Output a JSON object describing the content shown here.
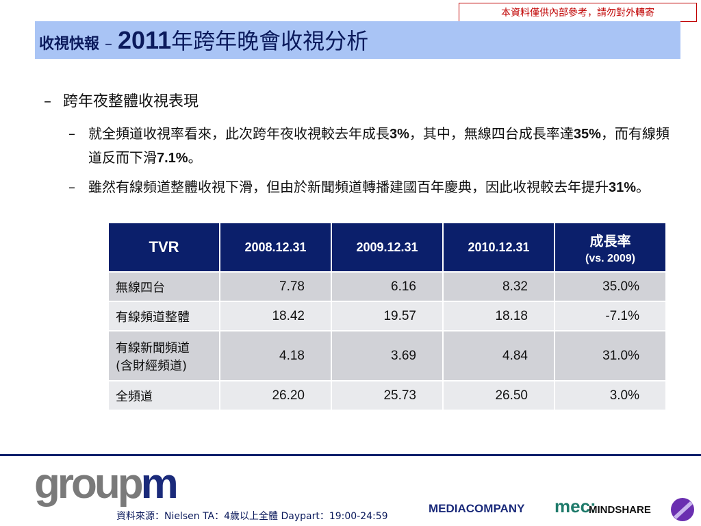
{
  "notice": "本資料僅供內部參考，請勿對外轉寄",
  "title": {
    "prefix": "收視快報",
    "separator": "–",
    "year": "2011",
    "rest": "年跨年晚會收視分析"
  },
  "bullets": {
    "level1": "跨年夜整體收視表現",
    "item1": {
      "p1": "就全頻道收視率看來，此次跨年夜收視較去年成長",
      "n1": "3%",
      "p2": "，其中，無線四台成長率達",
      "n2": "35%",
      "p3": "，而有線頻道反而下滑",
      "n3": "7.1%",
      "p4": "。"
    },
    "item2": {
      "p1": "雖然有線頻道整體收視下滑，但由於新聞頻道轉播建國百年慶典，因此收視較去年提升",
      "n1": "31%",
      "p2": "。"
    }
  },
  "table": {
    "headers": [
      "TVR",
      "2008.12.31",
      "2009.12.31",
      "2010.12.31",
      "成長率",
      "(vs. 2009)"
    ],
    "rows": [
      {
        "label": "無線四台",
        "v2008": "7.78",
        "v2009": "6.16",
        "v2010": "8.32",
        "growth": "35.0%"
      },
      {
        "label": "有線頻道整體",
        "v2008": "18.42",
        "v2009": "19.57",
        "v2010": "18.18",
        "growth": "-7.1%"
      },
      {
        "label": "有線新聞頻道",
        "label2": "(含財經頻道)",
        "v2008": "4.18",
        "v2009": "3.69",
        "v2010": "4.84",
        "growth": "31.0%"
      },
      {
        "label": "全頻道",
        "v2008": "26.20",
        "v2009": "25.73",
        "v2010": "26.50",
        "growth": "3.0%"
      }
    ]
  },
  "footer": {
    "logo_grey": "group",
    "logo_blue": "m",
    "source": "資料來源：Nielsen TA：4歲以上全體 Daypart：19:00-24:59",
    "brand1": "MEDIACOMPANY",
    "brand2": "mec:",
    "brand3": "MINDSHARE"
  }
}
